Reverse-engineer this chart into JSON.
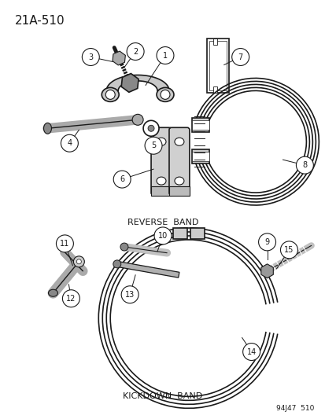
{
  "title": "21A-510",
  "reverse_band_label": "REVERSE  BAND",
  "kickdown_band_label": "KICKDOWN  BAND",
  "footer": "94J47  510",
  "background_color": "#ffffff",
  "line_color": "#1a1a1a",
  "fig_w": 4.14,
  "fig_h": 5.33,
  "dpi": 100
}
